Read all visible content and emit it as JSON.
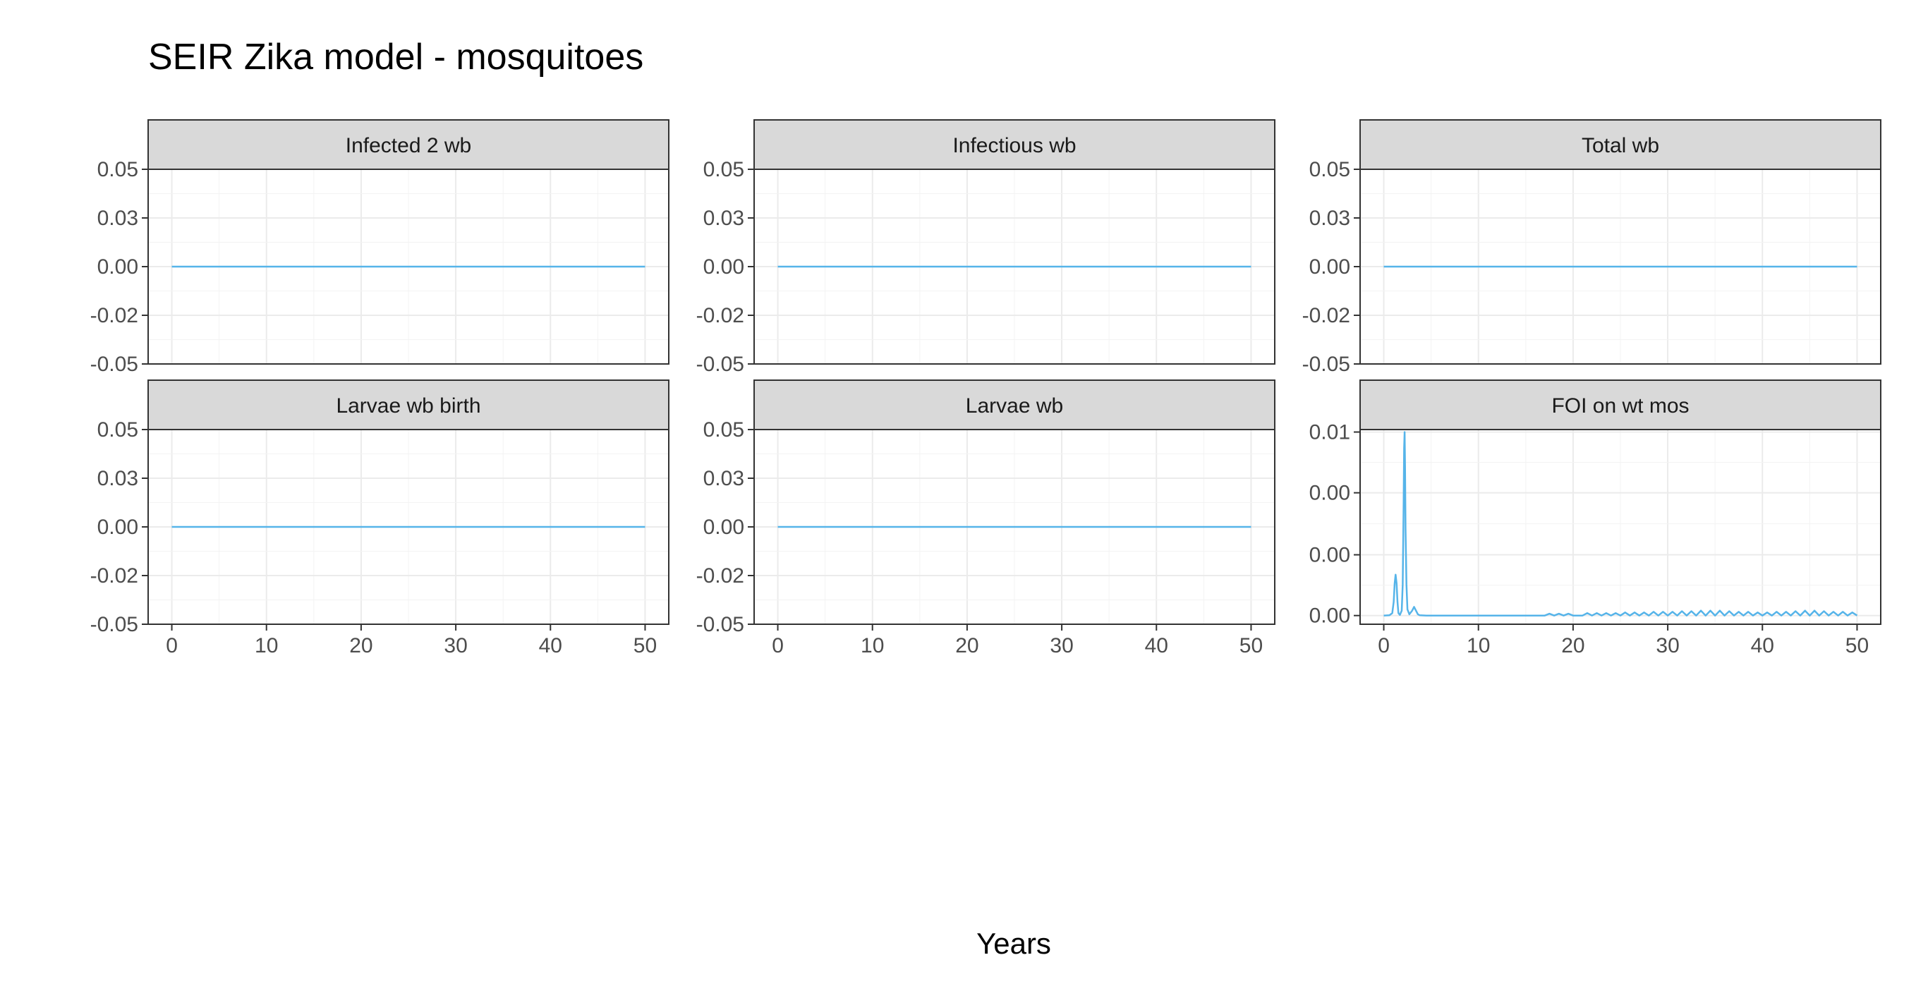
{
  "chart_data": {
    "type": "line",
    "title": "SEIR Zika model - mosquitoes",
    "xlabel": "Years",
    "ylabel": "",
    "line_color": "#56B4E9",
    "strip_fill": "#D9D9D9",
    "grid": true,
    "layout": "facet grid, 2 rows x 3 columns",
    "xlim": [
      -2.5,
      52.5
    ],
    "x_ticks": [
      "0",
      "10",
      "20",
      "30",
      "40",
      "50"
    ],
    "panels": [
      {
        "name": "Infected 2 wb",
        "ylim": [
          -0.05,
          0.05
        ],
        "y_ticks": [
          -0.05,
          -0.025,
          0.0,
          0.025,
          0.05
        ],
        "y_tick_labels": [
          "-0.05",
          "-0.02",
          "0.00",
          "0.03",
          "0.05"
        ],
        "series": [
          {
            "x": [
              0,
              50
            ],
            "y": [
              0,
              0
            ]
          }
        ],
        "show_x_ticks": false
      },
      {
        "name": "Infectious wb",
        "ylim": [
          -0.05,
          0.05
        ],
        "y_ticks": [
          -0.05,
          -0.025,
          0.0,
          0.025,
          0.05
        ],
        "y_tick_labels": [
          "-0.05",
          "-0.02",
          "0.00",
          "0.03",
          "0.05"
        ],
        "series": [
          {
            "x": [
              0,
              50
            ],
            "y": [
              0,
              0
            ]
          }
        ],
        "show_x_ticks": false
      },
      {
        "name": "Total wb",
        "ylim": [
          -0.05,
          0.05
        ],
        "y_ticks": [
          -0.05,
          -0.025,
          0.0,
          0.025,
          0.05
        ],
        "y_tick_labels": [
          "-0.05",
          "-0.02",
          "0.00",
          "0.03",
          "0.05"
        ],
        "series": [
          {
            "x": [
              0,
              50
            ],
            "y": [
              0,
              0
            ]
          }
        ],
        "show_x_ticks": false
      },
      {
        "name": "Larvae wb birth",
        "ylim": [
          -0.05,
          0.05
        ],
        "y_ticks": [
          -0.05,
          -0.025,
          0.0,
          0.025,
          0.05
        ],
        "y_tick_labels": [
          "-0.05",
          "-0.02",
          "0.00",
          "0.03",
          "0.05"
        ],
        "series": [
          {
            "x": [
              0,
              50
            ],
            "y": [
              0,
              0
            ]
          }
        ],
        "show_x_ticks": true
      },
      {
        "name": "Larvae wb",
        "ylim": [
          -0.05,
          0.05
        ],
        "y_ticks": [
          -0.05,
          -0.025,
          0.0,
          0.025,
          0.05
        ],
        "y_tick_labels": [
          "-0.05",
          "-0.02",
          "0.00",
          "0.03",
          "0.05"
        ],
        "series": [
          {
            "x": [
              0,
              50
            ],
            "y": [
              0,
              0
            ]
          }
        ],
        "show_x_ticks": true
      },
      {
        "name": "FOI on wt mos",
        "ylim": [
          -0.0007,
          0.015
        ],
        "y_ticks": [
          0.0,
          0.0049,
          0.0099,
          0.0148
        ],
        "y_tick_labels": [
          "0.00",
          "0.00",
          "0.00",
          "0.01"
        ],
        "series": [
          {
            "x": [
              0,
              0.6,
              0.9,
              1.05,
              1.15,
              1.25,
              1.35,
              1.45,
              1.55,
              1.7,
              1.9,
              2.0,
              2.1,
              2.15,
              2.2,
              2.25,
              2.3,
              2.4,
              2.5,
              2.7,
              3.0,
              3.2,
              3.4,
              3.6,
              3.8,
              4.5,
              6,
              10,
              15,
              17.0,
              17.5,
              18.0,
              18.5,
              19.0,
              19.5,
              20.0,
              21.0,
              21.5,
              22.0,
              22.5,
              23.0,
              23.5,
              24.0,
              24.5,
              25.0,
              25.5,
              26.0,
              26.5,
              27.0,
              27.5,
              28.0,
              28.5,
              29.0,
              29.5,
              30.0,
              30.5,
              31.0,
              31.5,
              32.0,
              32.5,
              33.0,
              33.5,
              34.0,
              34.5,
              35.0,
              35.5,
              36.0,
              36.5,
              37.0,
              37.5,
              38.0,
              38.5,
              39.0,
              39.5,
              40.0,
              40.5,
              41.0,
              41.5,
              42.0,
              42.5,
              43.0,
              43.5,
              44.0,
              44.5,
              45.0,
              45.5,
              46.0,
              46.5,
              47.0,
              47.5,
              48.0,
              48.5,
              49.0,
              49.5,
              50.0
            ],
            "y": [
              0,
              2e-05,
              0.0002,
              0.0011,
              0.0026,
              0.0033,
              0.0026,
              0.0011,
              0.0002,
              5e-05,
              0.0004,
              0.0025,
              0.009,
              0.0135,
              0.0148,
              0.012,
              0.007,
              0.0025,
              0.0005,
              0.0001,
              0.0004,
              0.0007,
              0.0004,
              0.0001,
              2e-05,
              0,
              0,
              0,
              0,
              0,
              0.00015,
              0,
              0.00015,
              0,
              0.00015,
              0,
              0,
              0.0002,
              0,
              0.0002,
              0,
              0.0002,
              0,
              0.0002,
              0,
              0.00025,
              0,
              0.00025,
              0,
              0.00025,
              0,
              0.0003,
              0,
              0.0003,
              0,
              0.0003,
              0,
              0.00035,
              0,
              0.00035,
              0,
              0.0004,
              0,
              0.0004,
              0,
              0.0004,
              0,
              0.00035,
              0,
              0.0003,
              0,
              0.0003,
              0,
              0.00025,
              0,
              0.00025,
              0,
              0.0003,
              0,
              0.0003,
              0,
              0.00035,
              0,
              0.0004,
              0,
              0.0004,
              0,
              0.00035,
              0,
              0.0003,
              0,
              0.0003,
              0,
              0.00025,
              0
            ]
          }
        ],
        "show_x_ticks": true
      }
    ]
  }
}
